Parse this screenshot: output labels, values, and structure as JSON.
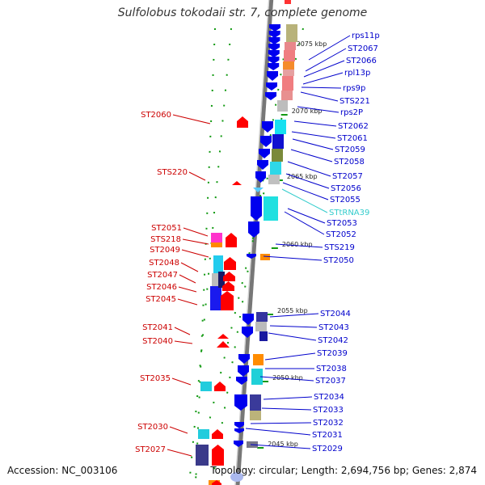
{
  "title": "Sulfolobus tokodaii str. 7, complete genome",
  "footer": {
    "accession": "Accession: NC_003106",
    "summary": "Topology: circular; Length: 2,694,756 bp; Genes: 2,874"
  },
  "colors": {
    "forward_gene": "#0000ee",
    "reverse_gene": "#ff0000",
    "left_label": "#cc0000",
    "right_label": "#0000cc",
    "trna_label": "#33cccc",
    "tick": "#119911"
  },
  "scale_marks": [
    {
      "label": "2075 kbp"
    },
    {
      "label": "2070 kbp"
    },
    {
      "label": "2065 kbp"
    },
    {
      "label": "2060 kbp"
    },
    {
      "label": "2055 kbp"
    },
    {
      "label": "2050 kbp"
    },
    {
      "label": "2045 kbp"
    }
  ],
  "right_labels": [
    {
      "text": "rps11p"
    },
    {
      "text": "ST2067"
    },
    {
      "text": "ST2066"
    },
    {
      "text": "rpl13p"
    },
    {
      "text": "rps9p"
    },
    {
      "text": "STS221"
    },
    {
      "text": "rps2P"
    },
    {
      "text": "ST2062"
    },
    {
      "text": "ST2061"
    },
    {
      "text": "ST2059"
    },
    {
      "text": "ST2058"
    },
    {
      "text": "ST2057"
    },
    {
      "text": "ST2056"
    },
    {
      "text": "ST2055"
    },
    {
      "text": "STtRNA39"
    },
    {
      "text": "ST2053"
    },
    {
      "text": "ST2052"
    },
    {
      "text": "STS219"
    },
    {
      "text": "ST2050"
    },
    {
      "text": "ST2044"
    },
    {
      "text": "ST2043"
    },
    {
      "text": "ST2042"
    },
    {
      "text": "ST2039"
    },
    {
      "text": "ST2038"
    },
    {
      "text": "ST2037"
    },
    {
      "text": "ST2034"
    },
    {
      "text": "ST2033"
    },
    {
      "text": "ST2032"
    },
    {
      "text": "ST2031"
    },
    {
      "text": "ST2029"
    }
  ],
  "left_labels": [
    {
      "text": "ST2060"
    },
    {
      "text": "STS220"
    },
    {
      "text": "ST2051"
    },
    {
      "text": "STS218"
    },
    {
      "text": "ST2049"
    },
    {
      "text": "ST2048"
    },
    {
      "text": "ST2047"
    },
    {
      "text": "ST2046"
    },
    {
      "text": "ST2045"
    },
    {
      "text": "ST2041"
    },
    {
      "text": "ST2040"
    },
    {
      "text": "ST2035"
    },
    {
      "text": "ST2030"
    },
    {
      "text": "ST2027"
    }
  ]
}
